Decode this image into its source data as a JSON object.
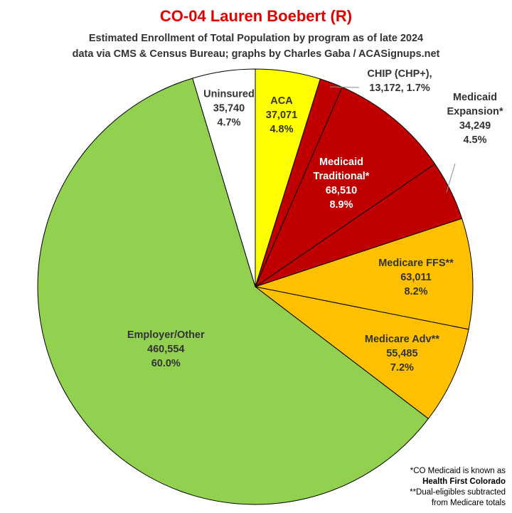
{
  "chart_data": {
    "type": "pie",
    "title": "CO-04 Lauren Boebert (R)",
    "subtitle_lines": [
      "Estimated Enrollment of Total Population by program as of late 2024",
      "data via CMS & Census Bureau; graphs by Charles Gaba / ACASignups.net"
    ],
    "slices": [
      {
        "name": "ACA",
        "label_lines": [
          "ACA"
        ],
        "value": 37071,
        "value_text": "37,071",
        "percent": "4.8%",
        "color": "#FFFF00"
      },
      {
        "name": "CHIP (CHP+)",
        "label_lines": [
          "CHIP (CHP+),",
          "13,172, 1.7%"
        ],
        "value": 13172,
        "value_text": "13,172",
        "percent": "1.7%",
        "color": "#C00000"
      },
      {
        "name": "Medicaid Traditional*",
        "label_lines": [
          "Medicaid",
          "Traditional*"
        ],
        "value": 68510,
        "value_text": "68,510",
        "percent": "8.9%",
        "color": "#C00000"
      },
      {
        "name": "Medicaid Expansion*",
        "label_lines": [
          "Medicaid",
          "Expansion*"
        ],
        "value": 34249,
        "value_text": "34,249",
        "percent": "4.5%",
        "color": "#C00000"
      },
      {
        "name": "Medicare FFS**",
        "label_lines": [
          "Medicare FFS**"
        ],
        "value": 63011,
        "value_text": "63,011",
        "percent": "8.2%",
        "color": "#FFC000"
      },
      {
        "name": "Medicare Adv**",
        "label_lines": [
          "Medicare Adv**"
        ],
        "value": 55485,
        "value_text": "55,485",
        "percent": "7.2%",
        "color": "#FFC000"
      },
      {
        "name": "Employer/Other",
        "label_lines": [
          "Employer/Other"
        ],
        "value": 460554,
        "value_text": "460,554",
        "percent": "60.0%",
        "color": "#92D050"
      },
      {
        "name": "Uninsured",
        "label_lines": [
          "Uninsured"
        ],
        "value": 35740,
        "value_text": "35,740",
        "percent": "4.7%",
        "color": "#FFFFFF"
      }
    ],
    "footnotes": [
      "*CO Medicaid is known as",
      "Health First Colorado",
      "**Dual-eligibles subtracted",
      "from Medicare totals"
    ]
  },
  "colors": {
    "title": "#E00000",
    "label_dark": "#333333",
    "label_light": "#ffffff",
    "edge": "#ffffff"
  }
}
